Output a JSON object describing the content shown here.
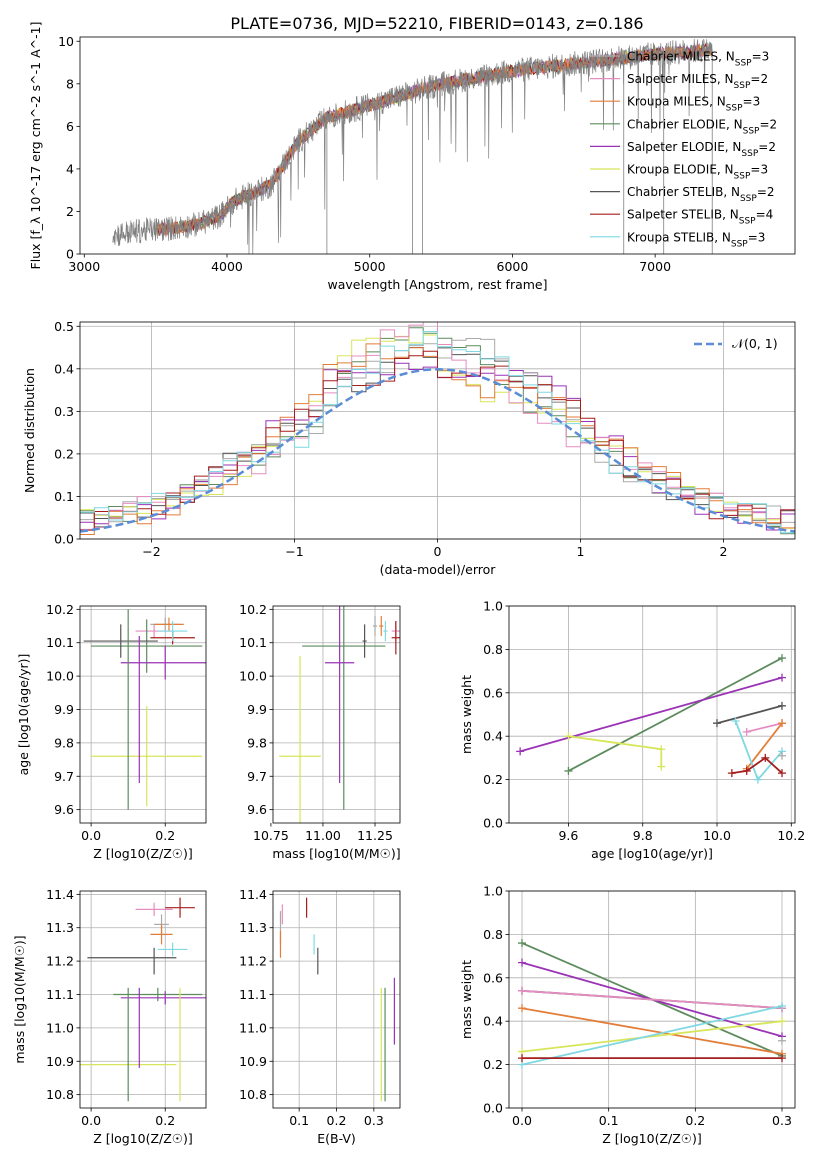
{
  "figure": {
    "title": "PLATE=0736, MJD=52210, FIBERID=0143, z=0.186"
  },
  "models": [
    {
      "name": "Chabrier MILES",
      "nssp": "3",
      "color": "#aaaaaa"
    },
    {
      "name": "Salpeter MILES",
      "nssp": "2",
      "color": "#e58dc1"
    },
    {
      "name": "Kroupa MILES",
      "nssp": "3",
      "color": "#e37d3a"
    },
    {
      "name": "Chabrier ELODIE",
      "nssp": "2",
      "color": "#5d8b5d"
    },
    {
      "name": "Salpeter ELODIE",
      "nssp": "2",
      "color": "#9a33b5"
    },
    {
      "name": "Kroupa ELODIE",
      "nssp": "3",
      "color": "#d7e55a"
    },
    {
      "name": "Chabrier STELIB",
      "nssp": "2",
      "color": "#555555"
    },
    {
      "name": "Salpeter STELIB",
      "nssp": "4",
      "color": "#a51d1d"
    },
    {
      "name": "Kroupa STELIB",
      "nssp": "3",
      "color": "#7fd8e2"
    }
  ],
  "chart_data": [
    {
      "id": "spectrum",
      "type": "line",
      "xlabel": "wavelength [Angstrom, rest frame]",
      "ylabel": "Flux [f_λ 10^-17 erg cm^-2 s^-1 A^-1]",
      "xlim": [
        2970,
        7980
      ],
      "ylim": [
        0,
        10.2
      ],
      "xticks": [
        3000,
        4000,
        5000,
        6000,
        7000
      ],
      "yticks": [
        0,
        2,
        4,
        6,
        8,
        10
      ],
      "observed_range": [
        3200,
        7400
      ],
      "observed_color": "#808080",
      "continuum_points": [
        [
          3200,
          0.9
        ],
        [
          3400,
          1.1
        ],
        [
          3600,
          1.2
        ],
        [
          3800,
          1.4
        ],
        [
          3950,
          1.8
        ],
        [
          4050,
          2.5
        ],
        [
          4300,
          3.2
        ],
        [
          4500,
          5.3
        ],
        [
          4700,
          6.4
        ],
        [
          5000,
          7.0
        ],
        [
          5500,
          8.0
        ],
        [
          6000,
          8.6
        ],
        [
          6500,
          9.0
        ],
        [
          7000,
          9.4
        ],
        [
          7400,
          9.6
        ]
      ],
      "model_range": [
        3500,
        7400
      ],
      "legend": "top-right",
      "grid": false
    },
    {
      "id": "residuals",
      "type": "step",
      "xlabel": "(data-model)/error",
      "ylabel": "Normed distribution",
      "xlim": [
        -2.5,
        2.5
      ],
      "ylim": [
        0,
        0.51
      ],
      "xticks": [
        -2,
        -1,
        0,
        1,
        2
      ],
      "yticks": [
        0,
        0.1,
        0.2,
        0.3,
        0.4,
        0.5
      ],
      "bin_width": 0.1,
      "gaussian": {
        "label": "𝒩(0, 1)",
        "mean": 0,
        "sigma": 1,
        "color": "#5b8cd6"
      },
      "legend": "top-right",
      "grid": true
    },
    {
      "id": "age_vs_Z",
      "type": "errorbar",
      "xlabel": "Z [log10(Z/Z☉)]",
      "ylabel": "age [log10(age/yr)]",
      "xlim": [
        -0.03,
        0.31
      ],
      "ylim": [
        9.56,
        10.21
      ],
      "xticks": [
        0.0,
        0.2
      ],
      "yticks": [
        9.6,
        9.7,
        9.8,
        9.9,
        10.0,
        10.1,
        10.2
      ],
      "points": [
        {
          "model": 0,
          "x": 0.2,
          "y": 10.155,
          "xerr": 0.04,
          "yerr": 0.02
        },
        {
          "model": 1,
          "x": 0.17,
          "y": 10.135,
          "xerr": 0.05,
          "yerr": 0.02
        },
        {
          "model": 2,
          "x": 0.21,
          "y": 10.155,
          "xerr": 0.04,
          "yerr": 0.02
        },
        {
          "model": 3,
          "x": 0.15,
          "y": 10.09,
          "xerr": 0.15,
          "yerr": 0.08
        },
        {
          "model": 4,
          "x": 0.2,
          "y": 10.04,
          "xerr": 0.12,
          "yerr": 0.05
        },
        {
          "model": 5,
          "x": 0.15,
          "y": 9.76,
          "xerr": 0.15,
          "yerr": 0.15
        },
        {
          "model": 6,
          "x": 0.08,
          "y": 10.105,
          "xerr": 0.1,
          "yerr": 0.05
        },
        {
          "model": 7,
          "x": 0.22,
          "y": 10.115,
          "xerr": 0.06,
          "yerr": 0.02
        },
        {
          "model": 8,
          "x": 0.22,
          "y": 10.135,
          "xerr": 0.04,
          "yerr": 0.03
        },
        {
          "model": 3,
          "x": 0.1,
          "y": 9.9,
          "xerr": 0.0,
          "yerr": 0.3
        },
        {
          "model": 4,
          "x": 0.13,
          "y": 9.9,
          "xerr": 0.0,
          "yerr": 0.22
        }
      ],
      "grid": true
    },
    {
      "id": "age_vs_mass",
      "type": "errorbar",
      "xlabel": "mass [log10(M/M☉)]",
      "ylabel": "",
      "xlim": [
        10.76,
        11.37
      ],
      "ylim": [
        9.56,
        10.21
      ],
      "xticks": [
        10.75,
        11.0,
        11.25
      ],
      "yticks": [
        9.6,
        9.7,
        9.8,
        9.9,
        10.0,
        10.1,
        10.2
      ],
      "points": [
        {
          "model": 0,
          "x": 11.25,
          "y": 10.15,
          "xerr": 0.01,
          "yerr": 0.03
        },
        {
          "model": 1,
          "x": 11.35,
          "y": 10.135,
          "xerr": 0.02,
          "yerr": 0.03
        },
        {
          "model": 2,
          "x": 11.28,
          "y": 10.15,
          "xerr": 0.01,
          "yerr": 0.03
        },
        {
          "model": 3,
          "x": 11.1,
          "y": 10.09,
          "xerr": 0.2,
          "yerr": 0.49
        },
        {
          "model": 4,
          "x": 11.08,
          "y": 10.04,
          "xerr": 0.07,
          "yerr": 0.36
        },
        {
          "model": 5,
          "x": 10.89,
          "y": 9.76,
          "xerr": 0.1,
          "yerr": 0.3
        },
        {
          "model": 6,
          "x": 11.2,
          "y": 10.105,
          "xerr": 0.01,
          "yerr": 0.05
        },
        {
          "model": 7,
          "x": 11.35,
          "y": 10.115,
          "xerr": 0.02,
          "yerr": 0.05
        },
        {
          "model": 8,
          "x": 11.3,
          "y": 10.135,
          "xerr": 0.01,
          "yerr": 0.03
        }
      ],
      "grid": true
    },
    {
      "id": "weight_vs_age",
      "type": "line",
      "xlabel": "age [log10(age/yr)]",
      "ylabel": "mass weight",
      "xlim": [
        9.44,
        10.21
      ],
      "ylim": [
        0,
        1.0
      ],
      "xticks": [
        9.6,
        9.8,
        10.0,
        10.2
      ],
      "yticks": [
        0,
        0.2,
        0.4,
        0.6,
        0.8,
        1.0
      ],
      "series": [
        {
          "model": 3,
          "points": [
            [
              9.6,
              0.24
            ],
            [
              10.175,
              0.76
            ]
          ]
        },
        {
          "model": 4,
          "points": [
            [
              9.47,
              0.33
            ],
            [
              10.175,
              0.67
            ]
          ]
        },
        {
          "model": 5,
          "points": [
            [
              9.6,
              0.4
            ],
            [
              9.85,
              0.34
            ],
            [
              9.85,
              0.26
            ]
          ]
        },
        {
          "model": 6,
          "points": [
            [
              10.0,
              0.46
            ],
            [
              10.175,
              0.54
            ]
          ]
        },
        {
          "model": 1,
          "points": [
            [
              10.08,
              0.42
            ],
            [
              10.175,
              0.46
            ]
          ]
        },
        {
          "model": 2,
          "points": [
            [
              10.08,
              0.25
            ],
            [
              10.175,
              0.46
            ]
          ]
        },
        {
          "model": 8,
          "points": [
            [
              10.05,
              0.47
            ],
            [
              10.11,
              0.2
            ],
            [
              10.175,
              0.33
            ]
          ]
        },
        {
          "model": 7,
          "points": [
            [
              10.04,
              0.23
            ],
            [
              10.08,
              0.24
            ],
            [
              10.13,
              0.3
            ],
            [
              10.175,
              0.23
            ]
          ]
        },
        {
          "model": 0,
          "points": [
            [
              10.175,
              0.31
            ]
          ]
        }
      ],
      "grid": true
    },
    {
      "id": "mass_vs_Z",
      "type": "errorbar",
      "xlabel": "Z [log10(Z/Z☉)]",
      "ylabel": "mass [log10(M/M☉)]",
      "xlim": [
        -0.03,
        0.31
      ],
      "ylim": [
        10.76,
        11.41
      ],
      "xticks": [
        0.0,
        0.2
      ],
      "yticks": [
        10.8,
        10.9,
        11.0,
        11.1,
        11.2,
        11.3,
        11.4
      ],
      "points": [
        {
          "model": 0,
          "x": 0.19,
          "y": 11.31,
          "xerr": 0.02,
          "yerr": 0.03
        },
        {
          "model": 1,
          "x": 0.17,
          "y": 11.355,
          "xerr": 0.05,
          "yerr": 0.02
        },
        {
          "model": 2,
          "x": 0.19,
          "y": 11.28,
          "xerr": 0.03,
          "yerr": 0.03
        },
        {
          "model": 3,
          "x": 0.18,
          "y": 11.1,
          "xerr": 0.12,
          "yerr": 0.02
        },
        {
          "model": 4,
          "x": 0.2,
          "y": 11.09,
          "xerr": 0.12,
          "yerr": 0.02
        },
        {
          "model": 5,
          "x": 0.1,
          "y": 10.89,
          "xerr": 0.13,
          "yerr": 0.0
        },
        {
          "model": 6,
          "x": 0.11,
          "y": 11.21,
          "xerr": 0.12,
          "yerr": 0.0
        },
        {
          "model": 7,
          "x": 0.24,
          "y": 11.36,
          "xerr": 0.04,
          "yerr": 0.03
        },
        {
          "model": 8,
          "x": 0.22,
          "y": 11.235,
          "xerr": 0.04,
          "yerr": 0.02
        },
        {
          "model": 3,
          "x": 0.1,
          "y": 10.95,
          "xerr": 0.0,
          "yerr": 0.17
        },
        {
          "model": 4,
          "x": 0.13,
          "y": 11.0,
          "xerr": 0.0,
          "yerr": 0.12
        },
        {
          "model": 5,
          "x": 0.24,
          "y": 10.95,
          "xerr": 0.0,
          "yerr": 0.17
        },
        {
          "model": 6,
          "x": 0.17,
          "y": 11.2,
          "xerr": 0.0,
          "yerr": 0.04
        }
      ],
      "grid": true
    },
    {
      "id": "mass_vs_ebv",
      "type": "errorbar",
      "xlabel": "E(B-V)",
      "ylabel": "",
      "xlim": [
        0.03,
        0.37
      ],
      "ylim": [
        10.76,
        11.41
      ],
      "xticks": [
        0.1,
        0.2,
        0.3
      ],
      "yticks": [
        10.8,
        10.9,
        11.0,
        11.1,
        11.2,
        11.3,
        11.4
      ],
      "points": [
        {
          "model": 0,
          "x": 0.05,
          "y": 11.3,
          "xerr": 0.0,
          "yerr": 0.05
        },
        {
          "model": 1,
          "x": 0.055,
          "y": 11.34,
          "xerr": 0.0,
          "yerr": 0.03
        },
        {
          "model": 2,
          "x": 0.05,
          "y": 11.25,
          "xerr": 0.0,
          "yerr": 0.04
        },
        {
          "model": 3,
          "x": 0.33,
          "y": 10.95,
          "xerr": 0.0,
          "yerr": 0.17
        },
        {
          "model": 4,
          "x": 0.355,
          "y": 11.05,
          "xerr": 0.0,
          "yerr": 0.1
        },
        {
          "model": 5,
          "x": 0.32,
          "y": 10.95,
          "xerr": 0.0,
          "yerr": 0.17
        },
        {
          "model": 6,
          "x": 0.15,
          "y": 11.2,
          "xerr": 0.0,
          "yerr": 0.04
        },
        {
          "model": 7,
          "x": 0.12,
          "y": 11.36,
          "xerr": 0.0,
          "yerr": 0.03
        },
        {
          "model": 8,
          "x": 0.14,
          "y": 11.25,
          "xerr": 0.0,
          "yerr": 0.03
        }
      ],
      "grid": true
    },
    {
      "id": "weight_vs_Z",
      "type": "line",
      "xlabel": "Z [log10(Z/Z☉)]",
      "ylabel": "mass weight",
      "xlim": [
        -0.015,
        0.315
      ],
      "ylim": [
        0,
        1.0
      ],
      "xticks": [
        0.0,
        0.1,
        0.2,
        0.3
      ],
      "yticks": [
        0,
        0.2,
        0.4,
        0.6,
        0.8,
        1.0
      ],
      "series": [
        {
          "model": 3,
          "points": [
            [
              0.0,
              0.76
            ],
            [
              0.3,
              0.24
            ]
          ]
        },
        {
          "model": 4,
          "points": [
            [
              0.0,
              0.67
            ],
            [
              0.3,
              0.33
            ]
          ]
        },
        {
          "model": 6,
          "points": [
            [
              0.0,
              0.54
            ],
            [
              0.3,
              0.46
            ]
          ]
        },
        {
          "model": 1,
          "points": [
            [
              0.0,
              0.54
            ],
            [
              0.3,
              0.46
            ]
          ]
        },
        {
          "model": 2,
          "points": [
            [
              0.0,
              0.46
            ],
            [
              0.3,
              0.25
            ]
          ]
        },
        {
          "model": 5,
          "points": [
            [
              0.0,
              0.26
            ],
            [
              0.3,
              0.4
            ]
          ]
        },
        {
          "model": 8,
          "points": [
            [
              0.0,
              0.2
            ],
            [
              0.3,
              0.47
            ]
          ]
        },
        {
          "model": 7,
          "points": [
            [
              0.0,
              0.23
            ],
            [
              0.3,
              0.23
            ]
          ]
        },
        {
          "model": 0,
          "points": [
            [
              0.3,
              0.31
            ]
          ]
        }
      ],
      "grid": true
    }
  ]
}
